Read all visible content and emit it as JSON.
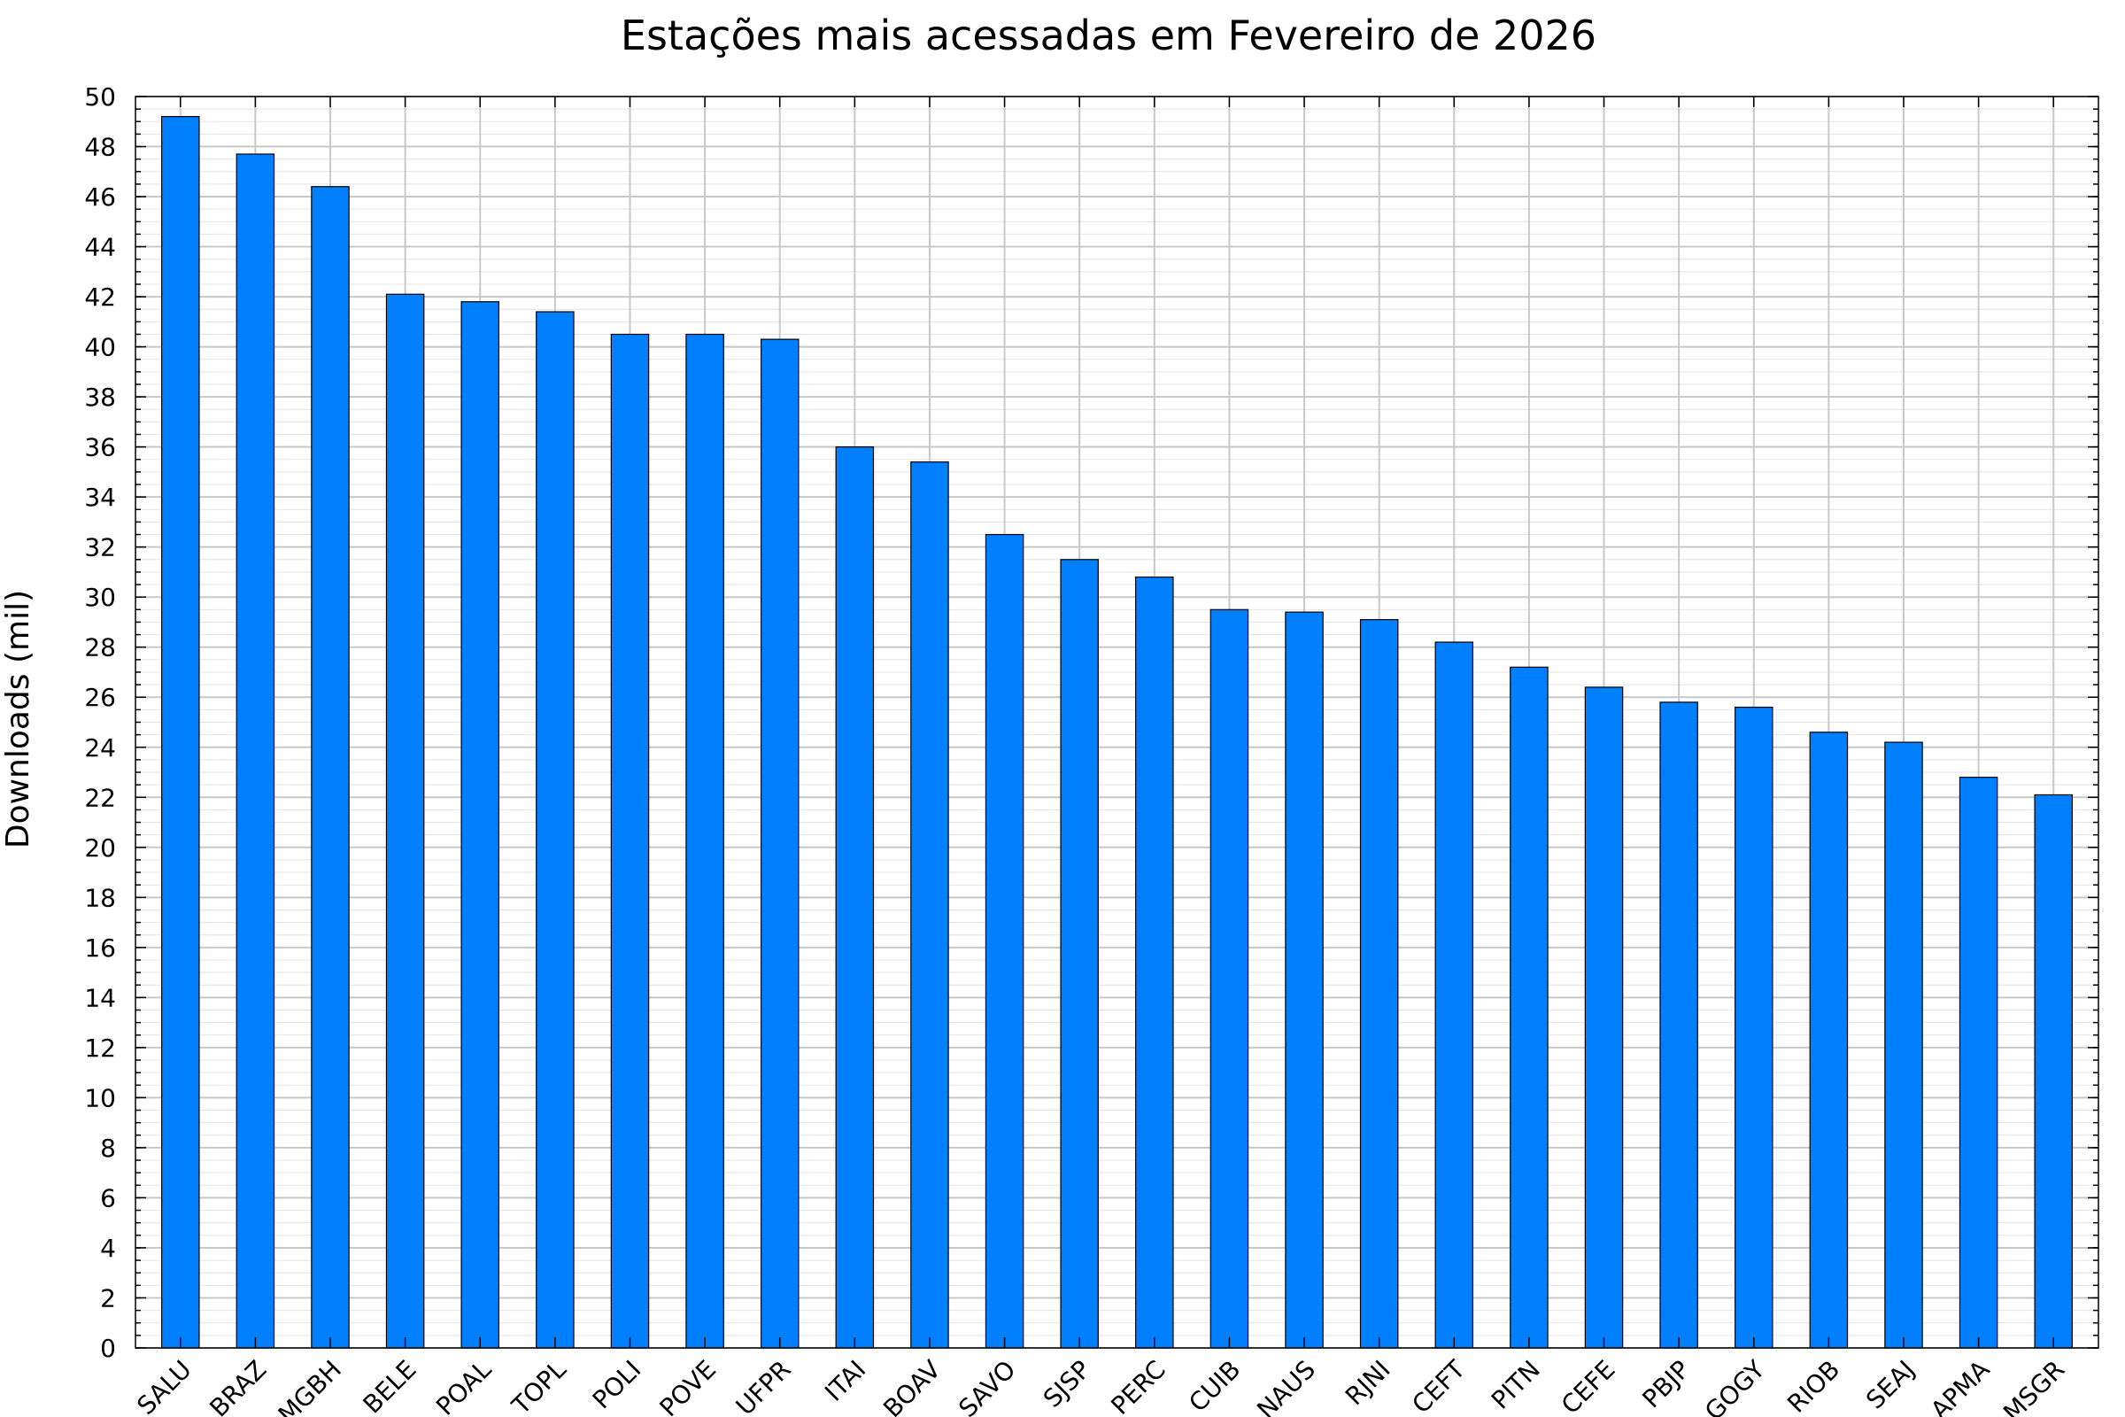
{
  "chart_data": {
    "type": "bar",
    "title": "Estações mais acessadas em Fevereiro de 2026",
    "xlabel": "",
    "ylabel": "Downloads (mil)",
    "ylim": [
      0,
      50
    ],
    "y_tick_step": 2,
    "y_minor_step": 0.5,
    "grid": true,
    "bar_color": "#007fff",
    "categories": [
      "SALU",
      "BRAZ",
      "MGBH",
      "BELE",
      "POAL",
      "TOPL",
      "POLI",
      "POVE",
      "UFPR",
      "ITAI",
      "BOAV",
      "SAVO",
      "SJSP",
      "PERC",
      "CUIB",
      "NAUS",
      "RJNI",
      "CEFT",
      "PITN",
      "CEFE",
      "PBJP",
      "GOGY",
      "RIOB",
      "SEAJ",
      "APMA",
      "MSGR"
    ],
    "values": [
      49.2,
      47.7,
      46.4,
      42.1,
      41.8,
      41.4,
      40.5,
      40.5,
      40.3,
      36.0,
      35.4,
      32.5,
      31.5,
      30.8,
      29.5,
      29.4,
      29.1,
      28.2,
      27.2,
      26.4,
      25.8,
      25.6,
      24.6,
      24.2,
      22.8,
      22.1
    ]
  }
}
